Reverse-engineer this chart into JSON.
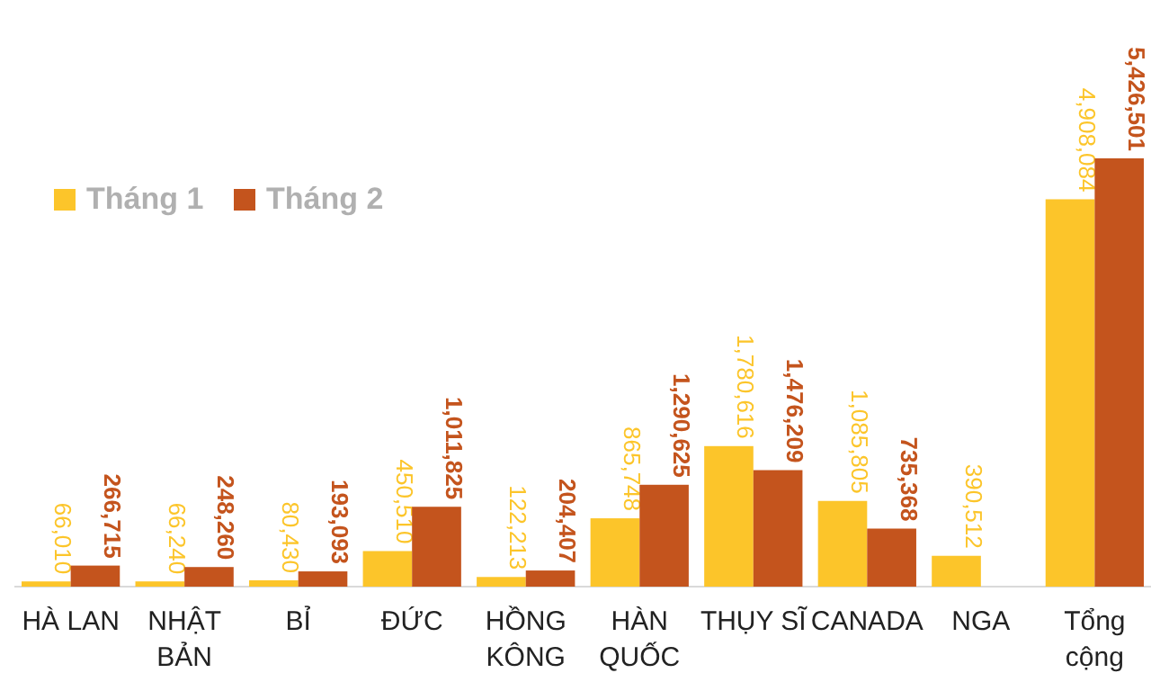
{
  "chart_data": {
    "type": "bar",
    "categories": [
      "HÀ LAN",
      "NHẬT BẢN",
      "BỈ",
      "ĐỨC",
      "HỒNG KÔNG",
      "HÀN QUỐC",
      "THỤY SĨ",
      "CANADA",
      "NGA",
      "Tổng cộng"
    ],
    "series": [
      {
        "name": "Tháng 1",
        "color": "#fcc52a",
        "values": [
          66010,
          66240,
          80430,
          450510,
          122213,
          865748,
          1780616,
          1085805,
          390512,
          4908084
        ],
        "value_labels": [
          "66,010",
          "66,240",
          "80,430",
          "450,510",
          "122,213",
          "865,748",
          "1,780,616",
          "1,085,805",
          "390,512",
          "4,908,084"
        ]
      },
      {
        "name": "Tháng 2",
        "color": "#c4541d",
        "values": [
          266715,
          248260,
          193093,
          1011825,
          204407,
          1290625,
          1476209,
          735368,
          null,
          5426501
        ],
        "value_labels": [
          "266,715",
          "248,260",
          "193,093",
          "1,011,825",
          "204,407",
          "1,290,625",
          "1,476,209",
          "735,368",
          null,
          "5,426,501"
        ]
      }
    ],
    "legend": "top left"
  }
}
